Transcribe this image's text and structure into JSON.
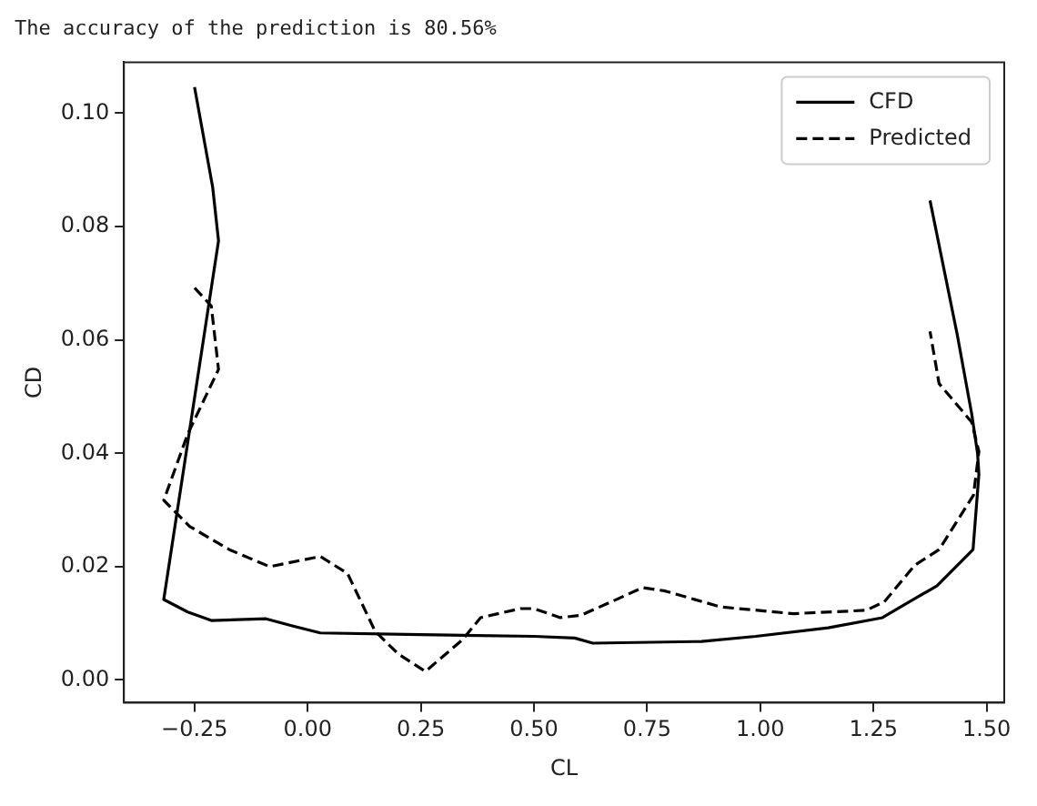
{
  "chart_data": {
    "type": "line",
    "title": "The accuracy of the prediction is 80.56%",
    "xlabel": "CL",
    "ylabel": "CD",
    "xlim": [
      -0.406,
      1.539
    ],
    "ylim": [
      -0.004,
      0.109
    ],
    "xticks": [
      {
        "value": -0.25,
        "label": "−0.25"
      },
      {
        "value": 0,
        "label": "0.00"
      },
      {
        "value": 0.25,
        "label": "0.25"
      },
      {
        "value": 0.5,
        "label": "0.50"
      },
      {
        "value": 0.75,
        "label": "0.75"
      },
      {
        "value": 1,
        "label": "1.00"
      },
      {
        "value": 1.25,
        "label": "1.25"
      },
      {
        "value": 1.5,
        "label": "1.50"
      }
    ],
    "yticks": [
      {
        "value": 0,
        "label": "0.00"
      },
      {
        "value": 0.02,
        "label": "0.02"
      },
      {
        "value": 0.04,
        "label": "0.04"
      },
      {
        "value": 0.06,
        "label": "0.06"
      },
      {
        "value": 0.08,
        "label": "0.08"
      },
      {
        "value": 0.1,
        "label": "0.10"
      }
    ],
    "grid": false,
    "legend": "top right",
    "marker": "none",
    "series": [
      {
        "name": "CFD",
        "color": "#000000",
        "line_style": "solid",
        "x": [
          -0.25,
          -0.21,
          -0.197,
          -0.318,
          -0.265,
          -0.213,
          -0.092,
          -0.032,
          0.028,
          0.25,
          0.5,
          0.59,
          0.63,
          0.87,
          0.99,
          1.15,
          1.27,
          1.31,
          1.39,
          1.47,
          1.483,
          1.48,
          1.467,
          1.435,
          1.375
        ],
        "values": [
          0.1046,
          0.087,
          0.0775,
          0.0142,
          0.012,
          0.0105,
          0.0108,
          0.0095,
          0.0083,
          0.008,
          0.0077,
          0.0074,
          0.0065,
          0.0068,
          0.0077,
          0.0092,
          0.011,
          0.0129,
          0.0166,
          0.023,
          0.0363,
          0.04,
          0.047,
          0.061,
          0.0846
        ]
      },
      {
        "name": "Predicted",
        "color": "#000000",
        "line_style": "dashed",
        "x": [
          -0.25,
          -0.213,
          -0.197,
          -0.265,
          -0.318,
          -0.261,
          -0.173,
          -0.084,
          0.028,
          0.088,
          0.149,
          0.2,
          0.26,
          0.342,
          0.382,
          0.47,
          0.5,
          0.558,
          0.603,
          0.671,
          0.74,
          0.79,
          0.912,
          1.073,
          1.234,
          1.274,
          1.342,
          1.395,
          1.471,
          1.483,
          1.467,
          1.395,
          1.375
        ],
        "values": [
          0.0692,
          0.066,
          0.0548,
          0.0434,
          0.0317,
          0.0271,
          0.023,
          0.02,
          0.0218,
          0.0188,
          0.0086,
          0.0046,
          0.0015,
          0.0071,
          0.011,
          0.0126,
          0.0126,
          0.011,
          0.0114,
          0.0138,
          0.0163,
          0.0157,
          0.0129,
          0.0117,
          0.0123,
          0.0138,
          0.0203,
          0.023,
          0.0326,
          0.0403,
          0.0455,
          0.0523,
          0.0615
        ]
      }
    ]
  }
}
